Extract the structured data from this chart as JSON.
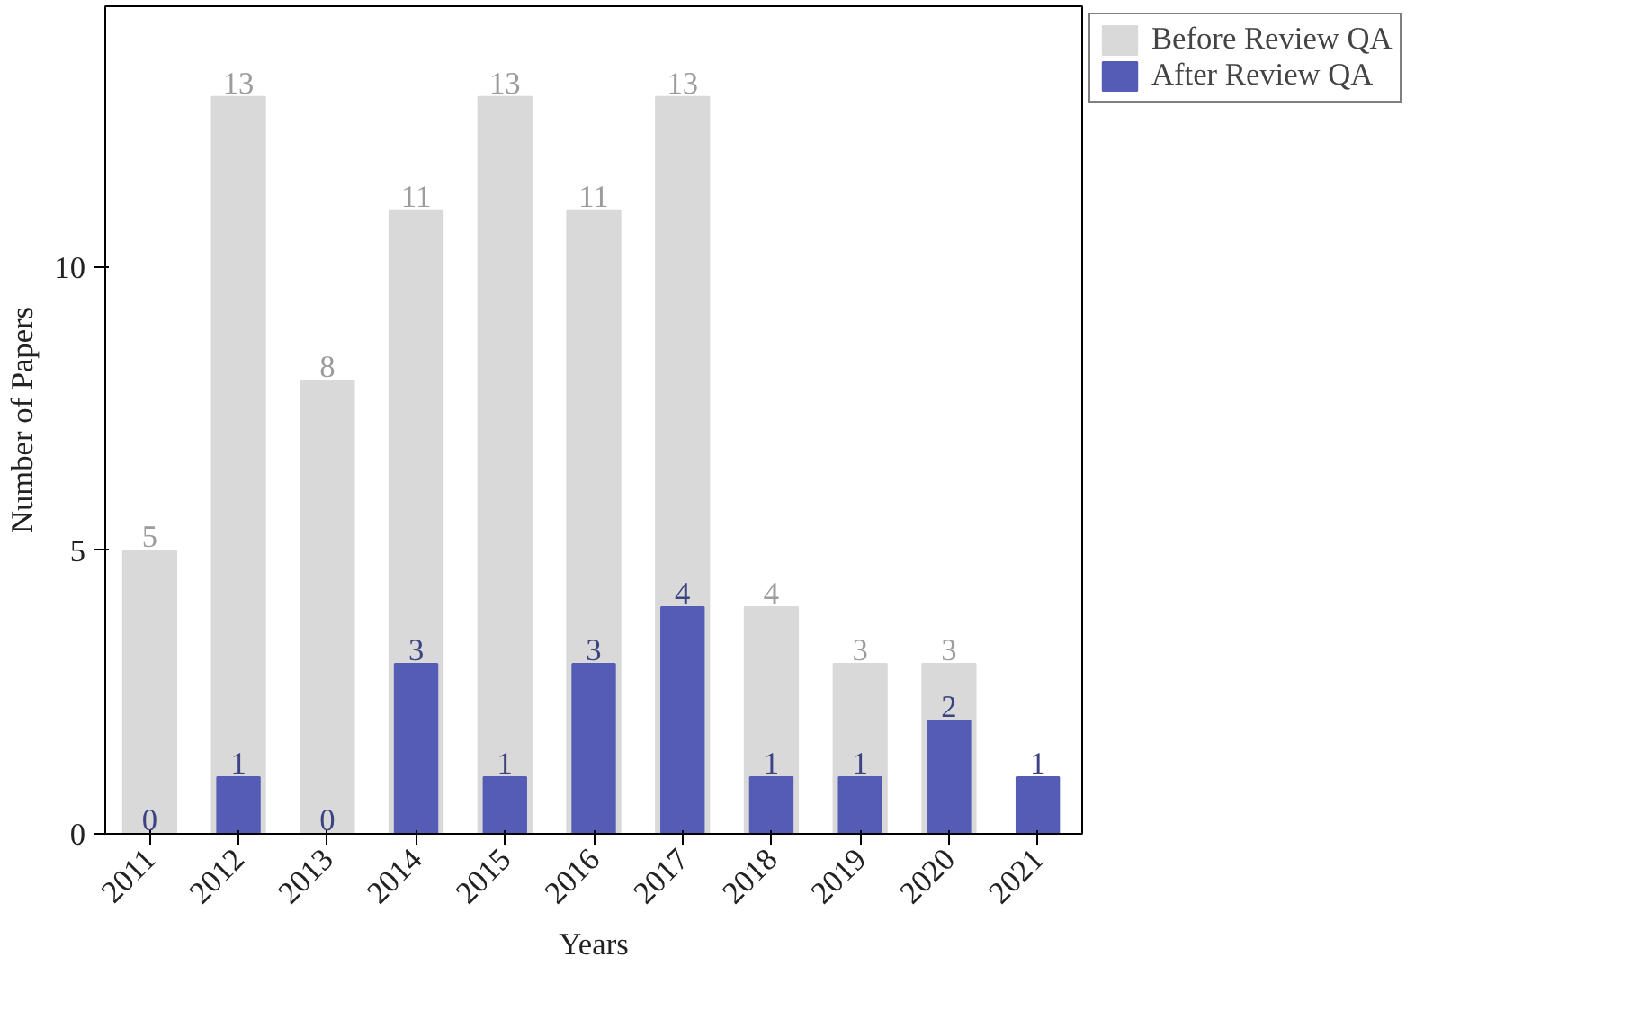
{
  "chart_data": {
    "type": "bar",
    "xlabel": "Years",
    "ylabel": "Number of Papers",
    "categories": [
      "2011",
      "2012",
      "2013",
      "2014",
      "2015",
      "2016",
      "2017",
      "2018",
      "2019",
      "2020",
      "2021"
    ],
    "series": [
      {
        "name": "Before Review QA",
        "color": "#d9d9d9",
        "values": [
          5,
          13,
          8,
          11,
          13,
          11,
          13,
          4,
          3,
          3,
          null
        ]
      },
      {
        "name": "After Review QA",
        "color": "#545cb5",
        "values": [
          0,
          1,
          0,
          3,
          1,
          3,
          4,
          1,
          1,
          2,
          1
        ]
      }
    ],
    "ylim": [
      0,
      14.6
    ],
    "yticks": [
      0,
      5,
      10
    ],
    "data_labels": true,
    "grid": false,
    "legend": "top right"
  }
}
